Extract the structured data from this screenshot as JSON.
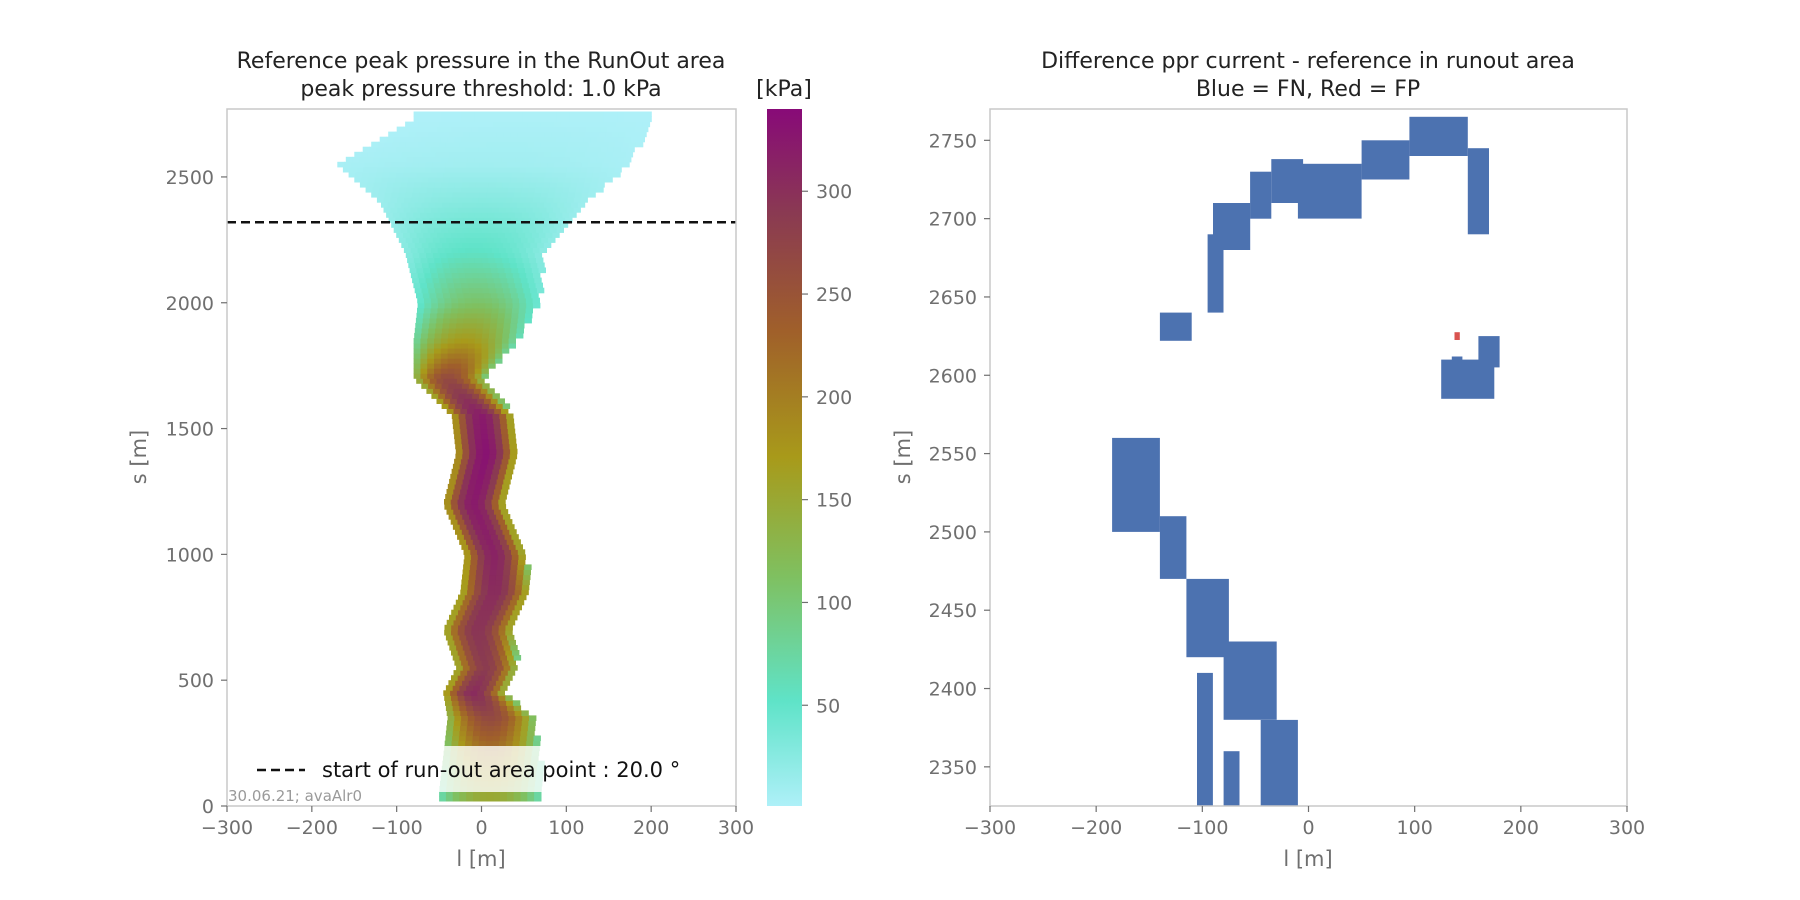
{
  "chart_data": [
    {
      "type": "heatmap",
      "title": "Reference peak pressure in the RunOut area",
      "subtitle": "peak pressure threshold: 1.0 kPa",
      "xlabel": "l [m]",
      "ylabel": "s [m]",
      "xlim": [
        -300,
        300
      ],
      "ylim": [
        0,
        2770
      ],
      "xticks": [
        -300,
        -200,
        -100,
        0,
        100,
        200,
        300
      ],
      "xtick_labels": [
        "−300",
        "−200",
        "−100",
        "0",
        "100",
        "200",
        "300"
      ],
      "yticks": [
        0,
        500,
        1000,
        1500,
        2000,
        2500
      ],
      "ytick_labels": [
        "0",
        "500",
        "1000",
        "1500",
        "2000",
        "2500"
      ],
      "colorbar": {
        "label": "[kPa]",
        "range": [
          1,
          340
        ],
        "ticks": [
          50,
          100,
          150,
          200,
          250,
          300
        ],
        "tick_labels": [
          "50",
          "100",
          "150",
          "200",
          "250",
          "300"
        ],
        "colors": [
          "#aef0f8",
          "#5fe3c8",
          "#7fc060",
          "#a89a1a",
          "#a0602a",
          "#8a3a52",
          "#880a78"
        ]
      },
      "reference_line": {
        "s": 2320,
        "style": "dashed",
        "color": "#111111"
      },
      "legend": {
        "label": "start of run-out area point : 20.0 °",
        "placement": "lower-center"
      },
      "stamp": "30.06.21; avaAlr0",
      "path_profile": [
        {
          "s": 60,
          "l": 10,
          "w": 60,
          "p": 150
        },
        {
          "s": 200,
          "l": 10,
          "w": 55,
          "p": 200
        },
        {
          "s": 350,
          "l": 10,
          "w": 50,
          "p": 260
        },
        {
          "s": 450,
          "l": -10,
          "w": 35,
          "p": 300
        },
        {
          "s": 550,
          "l": 5,
          "w": 35,
          "p": 280
        },
        {
          "s": 700,
          "l": -5,
          "w": 40,
          "p": 290
        },
        {
          "s": 850,
          "l": 15,
          "w": 40,
          "p": 300
        },
        {
          "s": 1000,
          "l": 15,
          "w": 35,
          "p": 310
        },
        {
          "s": 1200,
          "l": -10,
          "w": 35,
          "p": 320
        },
        {
          "s": 1400,
          "l": 5,
          "w": 35,
          "p": 330
        },
        {
          "s": 1550,
          "l": 0,
          "w": 35,
          "p": 320
        },
        {
          "s": 1700,
          "l": -40,
          "w": 40,
          "p": 260
        },
        {
          "s": 1850,
          "l": -20,
          "w": 60,
          "p": 170
        },
        {
          "s": 2000,
          "l": -5,
          "w": 70,
          "p": 110
        },
        {
          "s": 2200,
          "l": -10,
          "w": 80,
          "p": 60
        },
        {
          "s": 2400,
          "l": 0,
          "w": 120,
          "p": 30
        },
        {
          "s": 2550,
          "l": 0,
          "w": 170,
          "p": 10
        },
        {
          "s": 2730,
          "l": 60,
          "w": 140,
          "p": 2
        }
      ]
    },
    {
      "type": "heatmap",
      "title": "Difference ppr current - reference in runout area",
      "subtitle": "Blue = FN, Red = FP",
      "xlabel": "l [m]",
      "ylabel": "s [m]",
      "xlim": [
        -300,
        300
      ],
      "ylim": [
        2325,
        2770
      ],
      "xticks": [
        -300,
        -200,
        -100,
        0,
        100,
        200,
        300
      ],
      "xtick_labels": [
        "−300",
        "−200",
        "−100",
        "0",
        "100",
        "200",
        "300"
      ],
      "yticks": [
        2350,
        2400,
        2450,
        2500,
        2550,
        2600,
        2650,
        2700,
        2750
      ],
      "ytick_labels": [
        "2350",
        "2400",
        "2450",
        "2500",
        "2550",
        "2600",
        "2650",
        "2700",
        "2750"
      ],
      "colors": {
        "FN": "#4c72b0",
        "FP": "#d9534f"
      },
      "fn_regions": [
        {
          "l0": -90,
          "l1": -55,
          "s0": 2680,
          "s1": 2710
        },
        {
          "l0": -55,
          "l1": -35,
          "s0": 2700,
          "s1": 2730
        },
        {
          "l0": -35,
          "l1": -5,
          "s0": 2710,
          "s1": 2738
        },
        {
          "l0": -10,
          "l1": 50,
          "s0": 2700,
          "s1": 2735
        },
        {
          "l0": 50,
          "l1": 95,
          "s0": 2725,
          "s1": 2750
        },
        {
          "l0": 95,
          "l1": 150,
          "s0": 2740,
          "s1": 2765
        },
        {
          "l0": 150,
          "l1": 170,
          "s0": 2690,
          "s1": 2745
        },
        {
          "l0": -95,
          "l1": -80,
          "s0": 2640,
          "s1": 2690
        },
        {
          "l0": -140,
          "l1": -110,
          "s0": 2622,
          "s1": 2640
        },
        {
          "l0": -185,
          "l1": -140,
          "s0": 2500,
          "s1": 2560
        },
        {
          "l0": -140,
          "l1": -115,
          "s0": 2470,
          "s1": 2510
        },
        {
          "l0": -115,
          "l1": -75,
          "s0": 2420,
          "s1": 2470
        },
        {
          "l0": -80,
          "l1": -30,
          "s0": 2380,
          "s1": 2430
        },
        {
          "l0": -45,
          "l1": -10,
          "s0": 2325,
          "s1": 2380
        },
        {
          "l0": -105,
          "l1": -90,
          "s0": 2325,
          "s1": 2410
        },
        {
          "l0": -80,
          "l1": -65,
          "s0": 2325,
          "s1": 2360
        },
        {
          "l0": 125,
          "l1": 175,
          "s0": 2585,
          "s1": 2610
        },
        {
          "l0": 160,
          "l1": 180,
          "s0": 2605,
          "s1": 2625
        },
        {
          "l0": 135,
          "l1": 145,
          "s0": 2600,
          "s1": 2612
        }
      ],
      "fp_points": [
        {
          "l": 140,
          "s": 2625
        }
      ]
    }
  ]
}
